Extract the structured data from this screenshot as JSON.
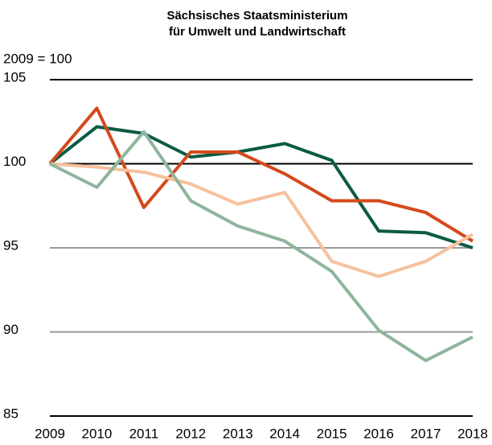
{
  "chart_data": {
    "type": "line",
    "title": [
      "Sächsisches Staatsministerium",
      "für Umwelt und Landwirtschaft"
    ],
    "y_label": "2009 = 100",
    "categories": [
      "2009",
      "2010",
      "2011",
      "2012",
      "2013",
      "2014",
      "2015",
      "2016",
      "2017",
      "2018"
    ],
    "series": [
      {
        "color": "#0b5b43",
        "values": [
          100,
          102.2,
          101.8,
          100.4,
          100.7,
          101.2,
          100.2,
          96.0,
          95.9,
          95.0
        ]
      },
      {
        "color": "#d4491b",
        "values": [
          100,
          103.3,
          97.4,
          100.7,
          100.7,
          99.4,
          97.8,
          97.8,
          97.1,
          95.4
        ]
      },
      {
        "color": "#f6c19d",
        "values": [
          100,
          99.8,
          99.5,
          98.8,
          97.6,
          98.3,
          94.2,
          93.3,
          94.2,
          95.8
        ]
      },
      {
        "color": "#8fb59c",
        "values": [
          100,
          98.6,
          101.9,
          97.8,
          96.3,
          95.4,
          93.6,
          90.1,
          88.3,
          89.7
        ]
      }
    ],
    "ylim": [
      85,
      105
    ],
    "yticks": [
      85,
      90,
      95,
      100,
      105
    ],
    "grid": true,
    "grid_colors": [
      "#000000",
      "#999999",
      "#999999",
      "#000000",
      "#000000"
    ]
  }
}
